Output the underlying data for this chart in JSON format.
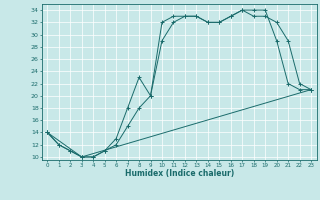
{
  "xlabel": "Humidex (Indice chaleur)",
  "bg_color": "#c8e8e8",
  "line_color": "#1a6b6b",
  "xlim": [
    -0.5,
    23.5
  ],
  "ylim": [
    9.5,
    35
  ],
  "xticks": [
    0,
    1,
    2,
    3,
    4,
    5,
    6,
    7,
    8,
    9,
    10,
    11,
    12,
    13,
    14,
    15,
    16,
    17,
    18,
    19,
    20,
    21,
    22,
    23
  ],
  "yticks": [
    10,
    12,
    14,
    16,
    18,
    20,
    22,
    24,
    26,
    28,
    30,
    32,
    34
  ],
  "line1_x": [
    0,
    1,
    2,
    3,
    4,
    5,
    6,
    7,
    8,
    9,
    10,
    11,
    12,
    13,
    14,
    15,
    16,
    17,
    18,
    19,
    20,
    21,
    22,
    23
  ],
  "line1_y": [
    14,
    12,
    11,
    10,
    10,
    11,
    12,
    15,
    18,
    20,
    29,
    32,
    33,
    33,
    32,
    32,
    33,
    34,
    34,
    34,
    29,
    22,
    21,
    21
  ],
  "line2_x": [
    0,
    1,
    2,
    3,
    4,
    5,
    6,
    7,
    8,
    9,
    10,
    11,
    12,
    13,
    14,
    15,
    16,
    17,
    18,
    19,
    20,
    21,
    22,
    23
  ],
  "line2_y": [
    14,
    12,
    11,
    10,
    10,
    11,
    13,
    18,
    23,
    20,
    32,
    33,
    33,
    33,
    32,
    32,
    33,
    34,
    33,
    33,
    32,
    29,
    22,
    21
  ],
  "line3_x": [
    0,
    3,
    23
  ],
  "line3_y": [
    14,
    10,
    21
  ]
}
